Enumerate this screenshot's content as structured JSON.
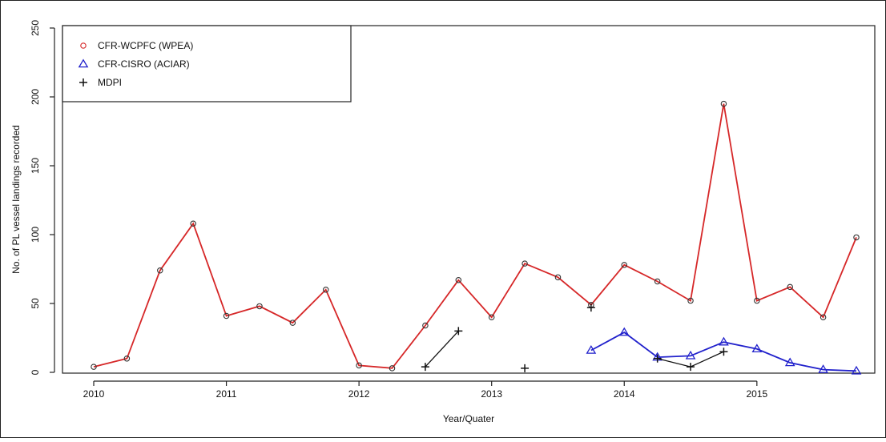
{
  "chart_data": {
    "type": "line",
    "xlabel": "Year/Quater",
    "ylabel": "No. of PL vessel landings recorded",
    "ylim": [
      0,
      250
    ],
    "yticks": [
      0,
      50,
      100,
      150,
      200,
      250
    ],
    "xlim": [
      2010,
      2015.75
    ],
    "xticks": [
      2010,
      2011,
      2012,
      2013,
      2014,
      2015
    ],
    "xtick_labels": [
      "2010",
      "2011",
      "2012",
      "2013",
      "2014",
      "2015"
    ],
    "legend": {
      "placement": "top-left",
      "boxed": true
    },
    "grid": false,
    "series": [
      {
        "name": "CFR-WCPFC (WPEA)",
        "color": "#d62728",
        "marker": "circle",
        "segments": [
          [
            [
              2010.0,
              4
            ],
            [
              2010.25,
              10
            ],
            [
              2010.5,
              74
            ],
            [
              2010.75,
              108
            ],
            [
              2011.0,
              41
            ],
            [
              2011.25,
              48
            ],
            [
              2011.5,
              36
            ],
            [
              2011.75,
              60
            ],
            [
              2012.0,
              5
            ],
            [
              2012.25,
              3
            ],
            [
              2012.5,
              34
            ],
            [
              2012.75,
              67
            ],
            [
              2013.0,
              40
            ],
            [
              2013.25,
              79
            ],
            [
              2013.5,
              69
            ],
            [
              2013.75,
              49
            ],
            [
              2014.0,
              78
            ],
            [
              2014.25,
              66
            ],
            [
              2014.5,
              52
            ],
            [
              2014.75,
              195
            ],
            [
              2015.0,
              52
            ],
            [
              2015.25,
              62
            ],
            [
              2015.5,
              40
            ],
            [
              2015.75,
              98
            ]
          ]
        ]
      },
      {
        "name": "CFR-CISRO (ACIAR)",
        "color": "#2222cc",
        "marker": "triangle",
        "segments": [
          [
            [
              2013.75,
              16
            ],
            [
              2014.0,
              29
            ],
            [
              2014.25,
              11
            ],
            [
              2014.5,
              12
            ],
            [
              2014.75,
              22
            ],
            [
              2015.0,
              17
            ],
            [
              2015.25,
              7
            ],
            [
              2015.5,
              2
            ],
            [
              2015.75,
              1
            ]
          ]
        ]
      },
      {
        "name": "MDPI",
        "color": "#111111",
        "marker": "plus",
        "segments": [
          [
            [
              2012.5,
              4
            ],
            [
              2012.75,
              30
            ]
          ],
          [
            [
              2013.25,
              3
            ]
          ],
          [
            [
              2013.75,
              47
            ]
          ],
          [
            [
              2014.25,
              10
            ],
            [
              2014.5,
              4
            ],
            [
              2014.75,
              15
            ]
          ]
        ]
      }
    ]
  }
}
